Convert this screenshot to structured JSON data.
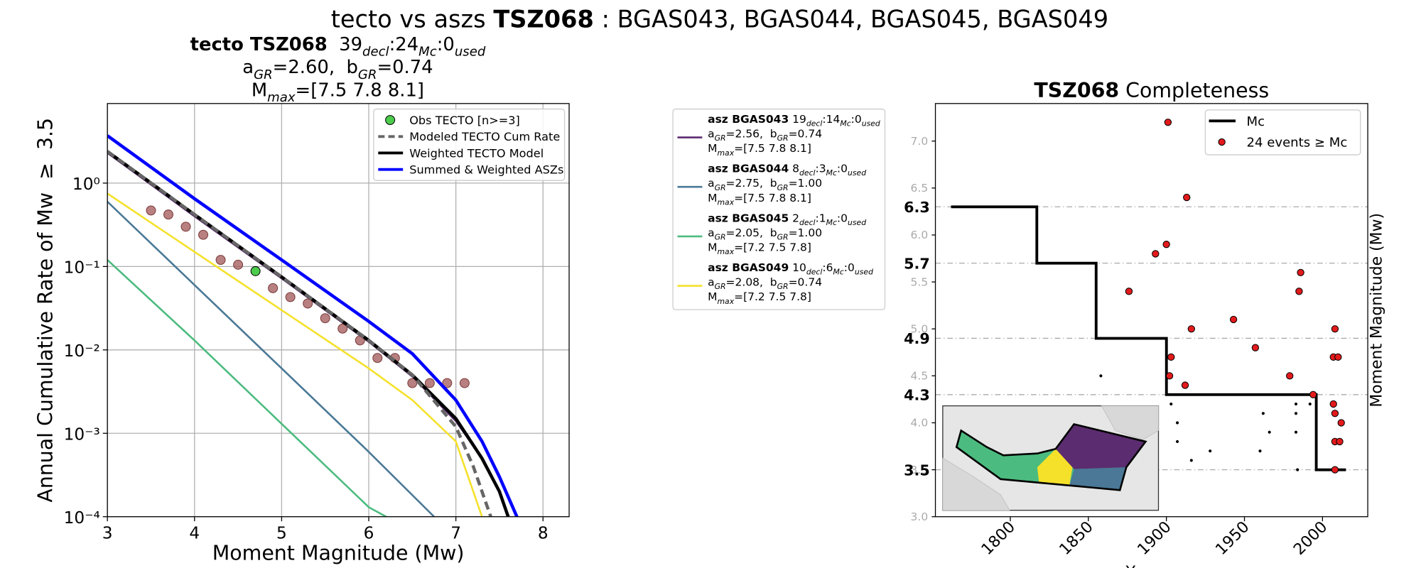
{
  "title": [
    {
      "text": "tecto vs aszs "
    },
    {
      "text": "TSZ068",
      "style": "bold"
    },
    {
      "text": " : BGAS043, BGAS044, BGAS045, BGAS049"
    }
  ],
  "chart_data": [
    {
      "type": "line",
      "title_lines": [
        [
          {
            "text": "tecto TSZ068",
            "style": "bold"
          },
          {
            "text": "  39"
          },
          {
            "text": "decl",
            "style": "sub"
          },
          {
            "text": ":24"
          },
          {
            "text": "Mc",
            "style": "sub"
          },
          {
            "text": ":0"
          },
          {
            "text": "used",
            "style": "sub"
          }
        ],
        [
          {
            "text": "a"
          },
          {
            "text": "GR",
            "style": "sub"
          },
          {
            "text": "=2.60,  b"
          },
          {
            "text": "GR",
            "style": "sub"
          },
          {
            "text": "=0.74"
          }
        ],
        [
          {
            "text": "M"
          },
          {
            "text": "max",
            "style": "sub"
          },
          {
            "text": "=[7.5 7.8 8.1]"
          }
        ]
      ],
      "xlabel": "Moment Magnitude (Mw)",
      "ylabel": "Annual Cumulative Rate of Mw  ≥  3.5",
      "xlim": [
        3,
        8.3
      ],
      "ylim": [
        0.0001,
        9
      ],
      "log_y": true,
      "grid": true,
      "legend": "upper right",
      "xticks": [
        3,
        4,
        5,
        6,
        7,
        8
      ],
      "yticks": [
        {
          "value": 0.0001,
          "label": "10⁻⁴"
        },
        {
          "value": 0.001,
          "label": "10⁻³"
        },
        {
          "value": 0.01,
          "label": "10⁻²"
        },
        {
          "value": 0.1,
          "label": "10⁻¹"
        },
        {
          "value": 1,
          "label": "10⁰"
        }
      ],
      "asz_series": [
        {
          "color": "#5b2c6f",
          "x": [
            3,
            4,
            5,
            6,
            6.5,
            7,
            7.3,
            7.5,
            7.6
          ],
          "values": [
            2.3,
            0.4,
            0.072,
            0.0125,
            0.0048,
            0.0014,
            0.0005,
            0.0002,
            0.0001
          ],
          "label_lines": [
            [
              {
                "text": "asz BGAS043",
                "style": "bold"
              },
              {
                "text": " 19"
              },
              {
                "text": "decl",
                "style": "sub"
              },
              {
                "text": ":14"
              },
              {
                "text": "Mc",
                "style": "sub"
              },
              {
                "text": ":0"
              },
              {
                "text": "used",
                "style": "sub"
              }
            ],
            [
              {
                "text": "a"
              },
              {
                "text": "GR",
                "style": "sub"
              },
              {
                "text": "=2.56,  b"
              },
              {
                "text": "GR",
                "style": "sub"
              },
              {
                "text": "=0.74"
              }
            ],
            [
              {
                "text": "M"
              },
              {
                "text": "max",
                "style": "sub"
              },
              {
                "text": "=[7.5 7.8 8.1]"
              }
            ]
          ]
        },
        {
          "color": "#4a7896",
          "x": [
            3,
            4,
            5,
            6,
            6.75
          ],
          "values": [
            0.6,
            0.06,
            0.006,
            0.0006,
            0.0001
          ],
          "label_lines": [
            [
              {
                "text": "asz BGAS044",
                "style": "bold"
              },
              {
                "text": " 8"
              },
              {
                "text": "decl",
                "style": "sub"
              },
              {
                "text": ":3"
              },
              {
                "text": "Mc",
                "style": "sub"
              },
              {
                "text": ":0"
              },
              {
                "text": "used",
                "style": "sub"
              }
            ],
            [
              {
                "text": "a"
              },
              {
                "text": "GR",
                "style": "sub"
              },
              {
                "text": "=2.75,  b"
              },
              {
                "text": "GR",
                "style": "sub"
              },
              {
                "text": "=1.00"
              }
            ],
            [
              {
                "text": "M"
              },
              {
                "text": "max",
                "style": "sub"
              },
              {
                "text": "=[7.5 7.8 8.1]"
              }
            ]
          ]
        },
        {
          "color": "#4cbb7f",
          "x": [
            3,
            4,
            5,
            6,
            6.2
          ],
          "values": [
            0.12,
            0.013,
            0.0013,
            0.00013,
            0.0001
          ],
          "label_lines": [
            [
              {
                "text": "asz BGAS045",
                "style": "bold"
              },
              {
                "text": " 2"
              },
              {
                "text": "decl",
                "style": "sub"
              },
              {
                "text": ":1"
              },
              {
                "text": "Mc",
                "style": "sub"
              },
              {
                "text": ":0"
              },
              {
                "text": "used",
                "style": "sub"
              }
            ],
            [
              {
                "text": "a"
              },
              {
                "text": "GR",
                "style": "sub"
              },
              {
                "text": "=2.05,  b"
              },
              {
                "text": "GR",
                "style": "sub"
              },
              {
                "text": "=1.00"
              }
            ],
            [
              {
                "text": "M"
              },
              {
                "text": "max",
                "style": "sub"
              },
              {
                "text": "=[7.2 7.5 7.8]"
              }
            ]
          ]
        },
        {
          "color": "#f5e12a",
          "x": [
            3,
            4,
            5,
            6,
            6.5,
            7,
            7.2,
            7.3
          ],
          "values": [
            0.75,
            0.15,
            0.03,
            0.006,
            0.0025,
            0.0008,
            0.0002,
            0.0001
          ],
          "label_lines": [
            [
              {
                "text": "asz BGAS049",
                "style": "bold"
              },
              {
                "text": " 10"
              },
              {
                "text": "decl",
                "style": "sub"
              },
              {
                "text": ":6"
              },
              {
                "text": "Mc",
                "style": "sub"
              },
              {
                "text": ":0"
              },
              {
                "text": "used",
                "style": "sub"
              }
            ],
            [
              {
                "text": "a"
              },
              {
                "text": "GR",
                "style": "sub"
              },
              {
                "text": "=2.08,  b"
              },
              {
                "text": "GR",
                "style": "sub"
              },
              {
                "text": "=0.74"
              }
            ],
            [
              {
                "text": "M"
              },
              {
                "text": "max",
                "style": "sub"
              },
              {
                "text": "=[7.2 7.5 7.8]"
              }
            ]
          ]
        }
      ],
      "series": [
        {
          "color": "#a05555",
          "marker": "o",
          "x": [
            3.5,
            3.7,
            3.9,
            4.1,
            4.3,
            4.5,
            4.9,
            5.1,
            5.3,
            5.5,
            5.7,
            5.9,
            6.1,
            6.3,
            6.5,
            6.7,
            6.9,
            7.1
          ],
          "values": [
            0.47,
            0.42,
            0.3,
            0.24,
            0.12,
            0.105,
            0.055,
            0.043,
            0.036,
            0.024,
            0.018,
            0.013,
            0.008,
            0.008,
            0.004,
            0.004,
            0.004,
            0.004
          ]
        },
        {
          "name": "Summed & Weighted ASZs",
          "color": "#0000ff",
          "x": [
            3,
            4,
            5,
            6,
            6.5,
            7,
            7.3,
            7.5,
            7.7
          ],
          "values": [
            3.7,
            0.65,
            0.12,
            0.022,
            0.009,
            0.0025,
            0.0008,
            0.0003,
            0.0001
          ]
        },
        {
          "name": "Weighted TECTO Model",
          "color": "#000000",
          "x": [
            3,
            4,
            5,
            6,
            6.5,
            7,
            7.3,
            7.5,
            7.6
          ],
          "values": [
            2.4,
            0.42,
            0.075,
            0.013,
            0.005,
            0.0015,
            0.0005,
            0.0002,
            0.0001
          ]
        },
        {
          "name": "Modeled TECTO Cum Rate",
          "color": "#666666",
          "dash": true,
          "x": [
            3,
            4,
            5,
            6,
            6.5,
            7,
            7.2,
            7.4
          ],
          "values": [
            2.4,
            0.42,
            0.075,
            0.013,
            0.005,
            0.0012,
            0.0004,
            0.0001
          ]
        },
        {
          "name": "Obs TECTO [n>=3]",
          "color": "#4ccc4c",
          "marker": "o",
          "x": [
            4.7
          ],
          "values": [
            0.088
          ]
        }
      ]
    },
    {
      "type": "scatter",
      "title": [
        {
          "text": "TSZ068",
          "style": "bold"
        },
        {
          "text": " Completeness"
        }
      ],
      "xlabel": "Year",
      "ylabel": "Moment Magnitude (Mw)",
      "xlim": [
        1752,
        2029
      ],
      "ylim": [
        3,
        7.4
      ],
      "grid": true,
      "legend": "upper right",
      "xticks": [
        1800,
        1850,
        1900,
        1950,
        2000
      ],
      "yticks": [
        {
          "value": 3,
          "label": "3.0"
        },
        3.5,
        {
          "value": 4,
          "label": "4.0"
        },
        4.5,
        {
          "value": 5,
          "label": "5.0"
        },
        5.5,
        {
          "value": 6,
          "label": "6.0"
        },
        6.5,
        {
          "value": 7,
          "label": "7.0"
        }
      ],
      "mc_ticks": [
        3.5,
        4.3,
        4.9,
        5.7,
        6.3
      ],
      "series": [
        {
          "color": "#000000",
          "marker": "o",
          "x": [
            1858,
            1903,
            1907,
            1907,
            1916,
            1928,
            1962,
            1966,
            1960,
            1983,
            1983,
            1983,
            1992,
            1984
          ],
          "values": [
            4.5,
            4.2,
            4.0,
            3.8,
            3.6,
            3.7,
            4.1,
            3.9,
            3.7,
            4.2,
            4.1,
            3.9,
            4.2,
            3.5
          ]
        },
        {
          "name": "Mc",
          "color": "#000000",
          "x": [
            1762,
            1817,
            1817,
            1855,
            1855,
            1900,
            1900,
            1996,
            1996,
            2015
          ],
          "values": [
            6.3,
            6.3,
            5.7,
            5.7,
            4.9,
            4.9,
            4.3,
            4.3,
            3.5,
            3.5
          ]
        },
        {
          "name": "24 events ≥ Mc",
          "color": "#e31a1c",
          "marker": "o",
          "x": [
            1901,
            1913,
            1900,
            1893,
            1876,
            1916,
            1943,
            1903,
            1902,
            1912,
            1957,
            1986,
            1985,
            1979,
            1994,
            2008,
            2007,
            2010,
            2007,
            2008,
            2012,
            2008,
            2011,
            2008
          ],
          "values": [
            7.2,
            6.4,
            5.9,
            5.8,
            5.4,
            5.0,
            5.1,
            4.7,
            4.5,
            4.4,
            4.8,
            5.6,
            5.4,
            4.5,
            4.3,
            5.0,
            4.7,
            4.7,
            4.2,
            4.1,
            4.0,
            3.8,
            3.8,
            3.5
          ]
        }
      ]
    }
  ]
}
